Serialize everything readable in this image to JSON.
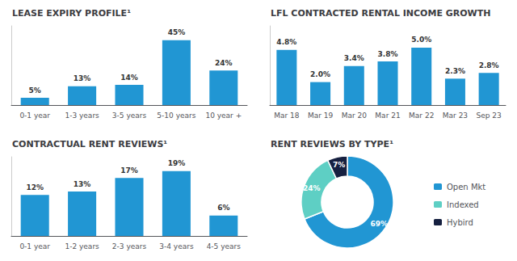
{
  "chart_data": [
    {
      "type": "bar",
      "title": "LEASE EXPIRY PROFILE¹",
      "categories": [
        "0-1 year",
        "1-3 years",
        "3-5 years",
        "5-10 years",
        "10 year +"
      ],
      "values": [
        5,
        13,
        14,
        45,
        24
      ],
      "value_labels": [
        "5%",
        "13%",
        "14%",
        "45%",
        "24%"
      ],
      "data_labels": true,
      "color": "#2196d3",
      "ylim": [
        0,
        54.9
      ],
      "tick_labels": "x",
      "grid": false
    },
    {
      "type": "bar",
      "title": "LFL CONTRACTED RENTAL INCOME GROWTH",
      "categories": [
        "Mar 18",
        "Mar 19",
        "Mar 20",
        "Mar 21",
        "Mar 22",
        "Mar 23",
        "Sep 23"
      ],
      "values": [
        4.8,
        2.0,
        3.4,
        3.8,
        5.0,
        2.3,
        2.8
      ],
      "value_labels": [
        "4.8%",
        "2.0%",
        "3.4%",
        "3.8%",
        "5.0%",
        "2.3%",
        "2.8%"
      ],
      "data_labels": true,
      "color": "#2196d3",
      "ylim": [
        0,
        6.9
      ],
      "tick_labels": "x",
      "grid": false
    },
    {
      "type": "bar",
      "title": "CONTRACTUAL RENT REVIEWS¹",
      "categories": [
        "0-1 year",
        "1-2 years",
        "2-3 years",
        "3-4 years",
        "4-5 years"
      ],
      "values": [
        12,
        13,
        17,
        19,
        6
      ],
      "value_labels": [
        "12%",
        "13%",
        "17%",
        "19%",
        "6%"
      ],
      "data_labels": true,
      "color": "#2196d3",
      "ylim": [
        0,
        23.18
      ],
      "tick_labels": "x",
      "grid": false
    },
    {
      "type": "pie",
      "title": "RENT REVIEWS BY TYPE¹",
      "categories": [
        "Open Mkt",
        "Indexed",
        "Hybird"
      ],
      "values": [
        69,
        24,
        7
      ],
      "value_labels": [
        "69%",
        "24%",
        "7%"
      ],
      "colors": [
        "#2196d3",
        "#5ecfc4",
        "#162040"
      ],
      "data_labels": true,
      "legend": "right"
    }
  ]
}
